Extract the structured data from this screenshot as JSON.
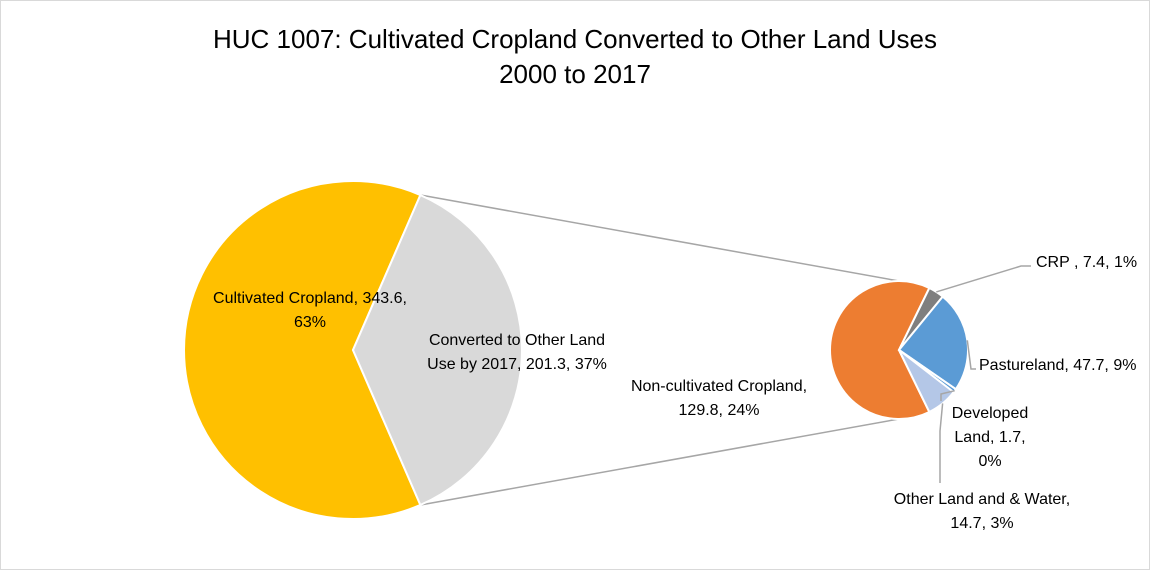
{
  "chart_data": {
    "type": "pie",
    "subtype": "pie-of-pie",
    "title": "HUC 1007: Cultivated Cropland Converted to Other Land Uses",
    "subtitle": "2000 to 2017",
    "primary": {
      "slices": [
        {
          "label": "Cultivated Cropland",
          "value": 343.6,
          "percent": "63%",
          "color": "#ffc000"
        },
        {
          "label": "Converted to Other Land Use by 2017",
          "value": 201.3,
          "percent": "37%",
          "color": "#d9d9d9"
        }
      ]
    },
    "secondary": {
      "slices": [
        {
          "label": "Non-cultivated Cropland",
          "value": 129.8,
          "percent": "24%",
          "color": "#ed7d31"
        },
        {
          "label": "CRP",
          "value": 7.4,
          "percent": "1%",
          "color": "#7f7f7f"
        },
        {
          "label": "Pastureland",
          "value": 47.7,
          "percent": "9%",
          "color": "#5b9bd5"
        },
        {
          "label": "Developed Land",
          "value": 1.7,
          "percent": "0%",
          "color": "#5b9bd5"
        },
        {
          "label": "Other Land and & Water",
          "value": 14.7,
          "percent": "3%",
          "color": "#b4c7e7"
        }
      ]
    },
    "labels": {
      "cultivated": [
        "Cultivated Cropland, 343.6,",
        "63%"
      ],
      "converted": [
        "Converted to Other Land",
        "Use by 2017, 201.3, 37%"
      ],
      "noncultivated": [
        "Non-cultivated Cropland,",
        "129.8, 24%"
      ],
      "crp": [
        "CRP , 7.4, 1%"
      ],
      "pasture": [
        "Pastureland, 47.7, 9%"
      ],
      "developed": [
        "Developed",
        "Land, 1.7,",
        "0%"
      ],
      "other": [
        "Other Land and & Water,",
        "14.7, 3%"
      ]
    }
  }
}
